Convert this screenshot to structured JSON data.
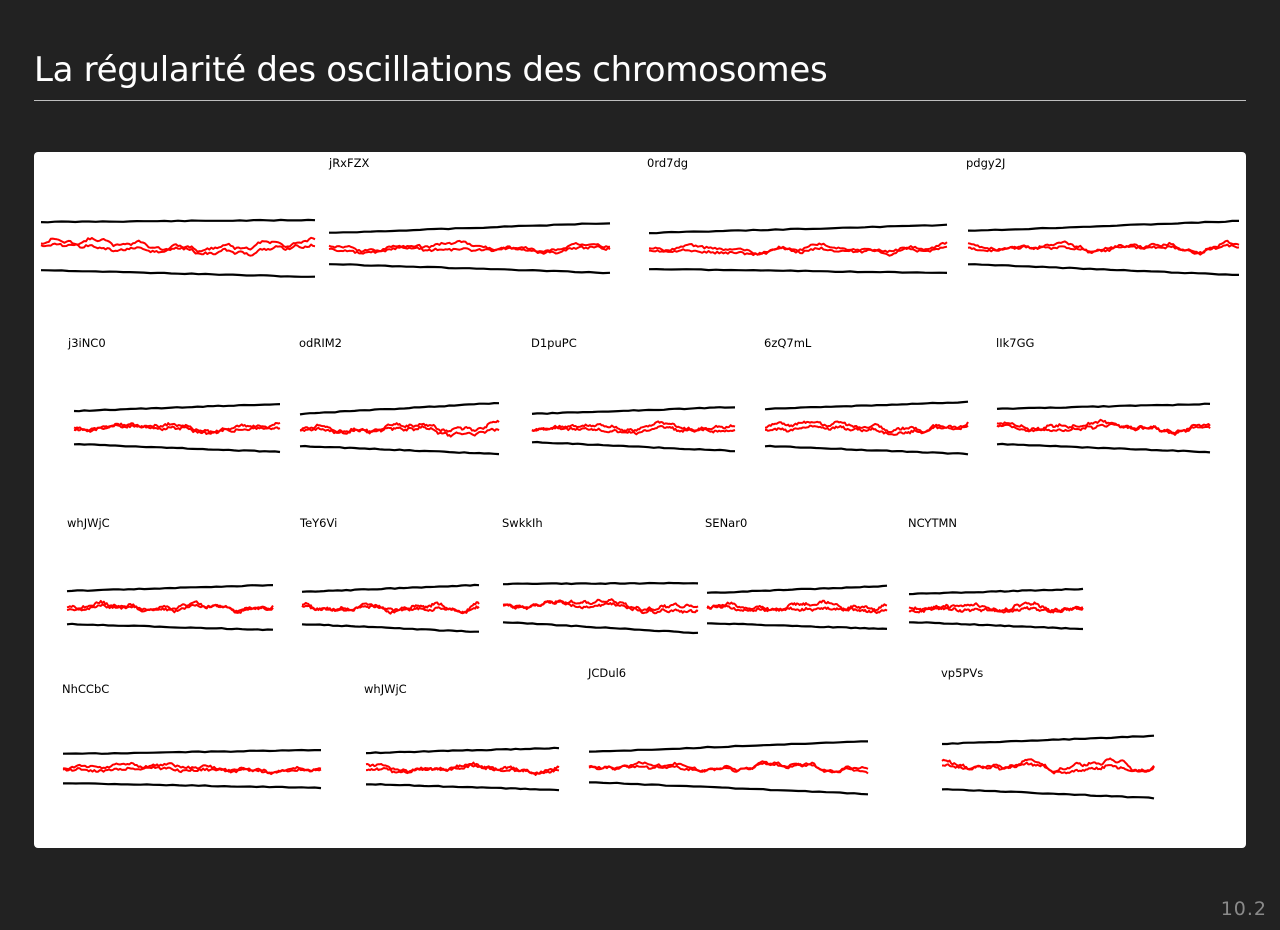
{
  "slide": {
    "title": "La régularité des oscillations des chromosomes",
    "page_number": "10.2"
  },
  "colors": {
    "background": "#222222",
    "panel": "#ffffff",
    "trajectory": "#ff0000",
    "pole": "#000000"
  },
  "figure": {
    "kymographs": [
      {
        "label": ""
      },
      {
        "label": "jRxFZX"
      },
      {
        "label": "0rd7dg"
      },
      {
        "label": "pdgy2J"
      },
      {
        "label": "j3iNC0"
      },
      {
        "label": "odRIM2"
      },
      {
        "label": "D1puPC"
      },
      {
        "label": "6zQ7mL"
      },
      {
        "label": "lIk7GG"
      },
      {
        "label": "whJWjC"
      },
      {
        "label": "TeY6Vi"
      },
      {
        "label": "SwkkIh"
      },
      {
        "label": "SENar0"
      },
      {
        "label": "NCYTMN"
      },
      {
        "label": "NhCCbC"
      },
      {
        "label": "whJWjC"
      },
      {
        "label": "JCDul6"
      },
      {
        "label": "vp5PVs"
      }
    ]
  }
}
